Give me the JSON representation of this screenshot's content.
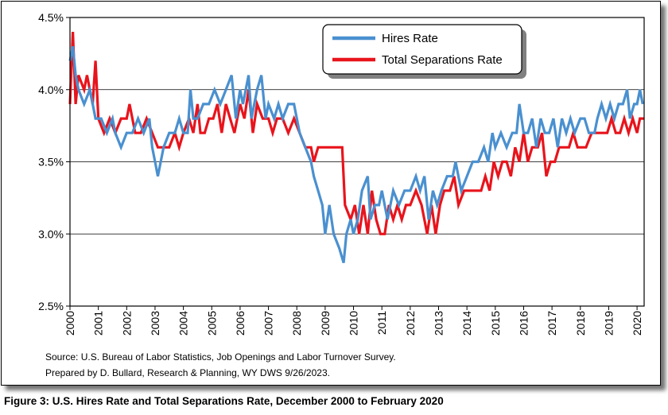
{
  "chart_data": {
    "type": "line",
    "ylim": [
      2.5,
      4.5
    ],
    "y_ticks": [
      "2.5%",
      "3.0%",
      "3.5%",
      "4.0%",
      "4.5%"
    ],
    "y_tick_values": [
      2.5,
      3.0,
      3.5,
      4.0,
      4.5
    ],
    "x_range": [
      2000,
      2020.25
    ],
    "x_ticks": [
      "2000",
      "2001",
      "2002",
      "2003",
      "2004",
      "2005",
      "2006",
      "2007",
      "2008",
      "2009",
      "2010",
      "2011",
      "2012",
      "2013",
      "2014",
      "2015",
      "2016",
      "2017",
      "2018",
      "2019",
      "2020"
    ],
    "x_tick_values": [
      2000,
      2001,
      2002,
      2003,
      2004,
      2005,
      2006,
      2007,
      2008,
      2009,
      2010,
      2011,
      2012,
      2013,
      2014,
      2015,
      2016,
      2017,
      2018,
      2019,
      2020
    ],
    "grid": "horizontal",
    "legend_position": "top-right",
    "series": [
      {
        "name": "Hires Rate",
        "color": "#4a90d0",
        "points": [
          [
            2000.0,
            4.2
          ],
          [
            2000.1,
            4.3
          ],
          [
            2000.2,
            4.1
          ],
          [
            2000.3,
            4.0
          ],
          [
            2000.5,
            3.9
          ],
          [
            2000.7,
            4.0
          ],
          [
            2000.9,
            3.8
          ],
          [
            2001.1,
            3.8
          ],
          [
            2001.3,
            3.7
          ],
          [
            2001.5,
            3.8
          ],
          [
            2001.6,
            3.7
          ],
          [
            2001.8,
            3.6
          ],
          [
            2002.0,
            3.7
          ],
          [
            2002.2,
            3.7
          ],
          [
            2002.4,
            3.8
          ],
          [
            2002.6,
            3.7
          ],
          [
            2002.8,
            3.8
          ],
          [
            2002.9,
            3.6
          ],
          [
            2003.0,
            3.5
          ],
          [
            2003.1,
            3.4
          ],
          [
            2003.3,
            3.6
          ],
          [
            2003.5,
            3.7
          ],
          [
            2003.7,
            3.7
          ],
          [
            2003.85,
            3.8
          ],
          [
            2004.0,
            3.7
          ],
          [
            2004.15,
            3.7
          ],
          [
            2004.25,
            4.0
          ],
          [
            2004.35,
            3.8
          ],
          [
            2004.5,
            3.8
          ],
          [
            2004.7,
            3.9
          ],
          [
            2004.9,
            3.9
          ],
          [
            2005.1,
            4.0
          ],
          [
            2005.3,
            3.9
          ],
          [
            2005.5,
            4.0
          ],
          [
            2005.7,
            4.1
          ],
          [
            2005.85,
            3.8
          ],
          [
            2006.0,
            4.0
          ],
          [
            2006.1,
            3.9
          ],
          [
            2006.3,
            4.1
          ],
          [
            2006.4,
            3.8
          ],
          [
            2006.6,
            4.0
          ],
          [
            2006.75,
            4.1
          ],
          [
            2006.9,
            3.8
          ],
          [
            2007.0,
            3.9
          ],
          [
            2007.2,
            3.8
          ],
          [
            2007.35,
            3.9
          ],
          [
            2007.5,
            3.8
          ],
          [
            2007.7,
            3.9
          ],
          [
            2007.9,
            3.9
          ],
          [
            2008.1,
            3.7
          ],
          [
            2008.3,
            3.6
          ],
          [
            2008.5,
            3.5
          ],
          [
            2008.6,
            3.4
          ],
          [
            2008.75,
            3.3
          ],
          [
            2008.9,
            3.2
          ],
          [
            2009.0,
            3.0
          ],
          [
            2009.15,
            3.2
          ],
          [
            2009.3,
            3.0
          ],
          [
            2009.5,
            2.9
          ],
          [
            2009.65,
            2.8
          ],
          [
            2009.75,
            3.0
          ],
          [
            2009.9,
            3.1
          ],
          [
            2010.0,
            3.0
          ],
          [
            2010.15,
            3.1
          ],
          [
            2010.3,
            3.3
          ],
          [
            2010.5,
            3.4
          ],
          [
            2010.6,
            3.1
          ],
          [
            2010.75,
            3.2
          ],
          [
            2010.9,
            3.2
          ],
          [
            2011.0,
            3.3
          ],
          [
            2011.2,
            3.1
          ],
          [
            2011.4,
            3.3
          ],
          [
            2011.6,
            3.2
          ],
          [
            2011.8,
            3.3
          ],
          [
            2012.0,
            3.3
          ],
          [
            2012.2,
            3.4
          ],
          [
            2012.35,
            3.3
          ],
          [
            2012.5,
            3.4
          ],
          [
            2012.65,
            3.1
          ],
          [
            2012.8,
            3.3
          ],
          [
            2012.95,
            3.2
          ],
          [
            2013.1,
            3.3
          ],
          [
            2013.3,
            3.4
          ],
          [
            2013.5,
            3.4
          ],
          [
            2013.6,
            3.5
          ],
          [
            2013.8,
            3.3
          ],
          [
            2014.0,
            3.4
          ],
          [
            2014.2,
            3.5
          ],
          [
            2014.4,
            3.5
          ],
          [
            2014.6,
            3.6
          ],
          [
            2014.75,
            3.5
          ],
          [
            2014.9,
            3.7
          ],
          [
            2015.0,
            3.6
          ],
          [
            2015.2,
            3.7
          ],
          [
            2015.4,
            3.6
          ],
          [
            2015.6,
            3.7
          ],
          [
            2015.75,
            3.7
          ],
          [
            2015.85,
            3.9
          ],
          [
            2016.0,
            3.7
          ],
          [
            2016.15,
            3.7
          ],
          [
            2016.3,
            3.8
          ],
          [
            2016.45,
            3.6
          ],
          [
            2016.6,
            3.8
          ],
          [
            2016.75,
            3.7
          ],
          [
            2016.9,
            3.7
          ],
          [
            2017.05,
            3.8
          ],
          [
            2017.2,
            3.6
          ],
          [
            2017.35,
            3.8
          ],
          [
            2017.5,
            3.7
          ],
          [
            2017.65,
            3.8
          ],
          [
            2017.8,
            3.7
          ],
          [
            2018.0,
            3.8
          ],
          [
            2018.15,
            3.8
          ],
          [
            2018.3,
            3.7
          ],
          [
            2018.5,
            3.7
          ],
          [
            2018.6,
            3.8
          ],
          [
            2018.75,
            3.9
          ],
          [
            2018.9,
            3.8
          ],
          [
            2019.05,
            3.9
          ],
          [
            2019.2,
            3.8
          ],
          [
            2019.35,
            3.9
          ],
          [
            2019.5,
            3.9
          ],
          [
            2019.65,
            4.0
          ],
          [
            2019.75,
            3.8
          ],
          [
            2019.9,
            3.9
          ],
          [
            2020.0,
            3.9
          ],
          [
            2020.1,
            4.0
          ],
          [
            2020.2,
            3.9
          ]
        ]
      },
      {
        "name": "Total Separations Rate",
        "color": "#e8141c",
        "points": [
          [
            2000.0,
            3.9
          ],
          [
            2000.1,
            4.4
          ],
          [
            2000.2,
            3.9
          ],
          [
            2000.3,
            4.1
          ],
          [
            2000.5,
            4.0
          ],
          [
            2000.6,
            4.1
          ],
          [
            2000.8,
            3.9
          ],
          [
            2000.9,
            4.2
          ],
          [
            2001.0,
            3.8
          ],
          [
            2001.2,
            3.7
          ],
          [
            2001.4,
            3.8
          ],
          [
            2001.6,
            3.7
          ],
          [
            2001.8,
            3.8
          ],
          [
            2002.0,
            3.8
          ],
          [
            2002.1,
            3.9
          ],
          [
            2002.3,
            3.7
          ],
          [
            2002.5,
            3.7
          ],
          [
            2002.7,
            3.8
          ],
          [
            2002.9,
            3.7
          ],
          [
            2003.1,
            3.6
          ],
          [
            2003.3,
            3.6
          ],
          [
            2003.5,
            3.6
          ],
          [
            2003.7,
            3.7
          ],
          [
            2003.85,
            3.6
          ],
          [
            2004.0,
            3.7
          ],
          [
            2004.2,
            3.8
          ],
          [
            2004.35,
            3.7
          ],
          [
            2004.5,
            3.9
          ],
          [
            2004.6,
            3.7
          ],
          [
            2004.75,
            3.7
          ],
          [
            2004.9,
            3.8
          ],
          [
            2005.05,
            3.8
          ],
          [
            2005.2,
            3.9
          ],
          [
            2005.35,
            3.7
          ],
          [
            2005.5,
            3.9
          ],
          [
            2005.65,
            3.8
          ],
          [
            2005.8,
            3.7
          ],
          [
            2006.0,
            3.9
          ],
          [
            2006.15,
            3.8
          ],
          [
            2006.3,
            4.0
          ],
          [
            2006.45,
            3.7
          ],
          [
            2006.6,
            3.9
          ],
          [
            2006.8,
            3.8
          ],
          [
            2007.0,
            3.8
          ],
          [
            2007.15,
            3.7
          ],
          [
            2007.3,
            3.8
          ],
          [
            2007.5,
            3.8
          ],
          [
            2007.7,
            3.7
          ],
          [
            2007.9,
            3.8
          ],
          [
            2008.1,
            3.7
          ],
          [
            2008.3,
            3.6
          ],
          [
            2008.5,
            3.6
          ],
          [
            2008.6,
            3.5
          ],
          [
            2008.75,
            3.6
          ],
          [
            2008.9,
            3.6
          ],
          [
            2009.0,
            3.6
          ],
          [
            2009.2,
            3.6
          ],
          [
            2009.4,
            3.6
          ],
          [
            2009.6,
            3.6
          ],
          [
            2009.7,
            3.2
          ],
          [
            2009.9,
            3.1
          ],
          [
            2010.05,
            3.2
          ],
          [
            2010.2,
            3.0
          ],
          [
            2010.35,
            3.2
          ],
          [
            2010.5,
            3.0
          ],
          [
            2010.65,
            3.3
          ],
          [
            2010.8,
            3.1
          ],
          [
            2010.95,
            3.0
          ],
          [
            2011.1,
            3.0
          ],
          [
            2011.25,
            3.2
          ],
          [
            2011.4,
            3.1
          ],
          [
            2011.55,
            3.2
          ],
          [
            2011.7,
            3.1
          ],
          [
            2011.85,
            3.2
          ],
          [
            2012.0,
            3.2
          ],
          [
            2012.2,
            3.3
          ],
          [
            2012.4,
            3.2
          ],
          [
            2012.6,
            3.0
          ],
          [
            2012.75,
            3.2
          ],
          [
            2012.9,
            3.0
          ],
          [
            2013.05,
            3.2
          ],
          [
            2013.2,
            3.3
          ],
          [
            2013.4,
            3.3
          ],
          [
            2013.55,
            3.4
          ],
          [
            2013.7,
            3.2
          ],
          [
            2013.9,
            3.3
          ],
          [
            2014.1,
            3.3
          ],
          [
            2014.3,
            3.3
          ],
          [
            2014.5,
            3.3
          ],
          [
            2014.65,
            3.4
          ],
          [
            2014.8,
            3.3
          ],
          [
            2014.95,
            3.5
          ],
          [
            2015.1,
            3.4
          ],
          [
            2015.25,
            3.5
          ],
          [
            2015.4,
            3.5
          ],
          [
            2015.55,
            3.4
          ],
          [
            2015.7,
            3.6
          ],
          [
            2015.85,
            3.5
          ],
          [
            2016.0,
            3.7
          ],
          [
            2016.15,
            3.5
          ],
          [
            2016.3,
            3.6
          ],
          [
            2016.5,
            3.6
          ],
          [
            2016.65,
            3.7
          ],
          [
            2016.8,
            3.4
          ],
          [
            2016.95,
            3.5
          ],
          [
            2017.1,
            3.5
          ],
          [
            2017.25,
            3.6
          ],
          [
            2017.4,
            3.6
          ],
          [
            2017.6,
            3.6
          ],
          [
            2017.75,
            3.7
          ],
          [
            2017.9,
            3.6
          ],
          [
            2018.05,
            3.6
          ],
          [
            2018.2,
            3.6
          ],
          [
            2018.4,
            3.7
          ],
          [
            2018.6,
            3.7
          ],
          [
            2018.8,
            3.7
          ],
          [
            2018.95,
            3.7
          ],
          [
            2019.1,
            3.8
          ],
          [
            2019.25,
            3.7
          ],
          [
            2019.4,
            3.7
          ],
          [
            2019.55,
            3.8
          ],
          [
            2019.7,
            3.7
          ],
          [
            2019.85,
            3.8
          ],
          [
            2020.0,
            3.7
          ],
          [
            2020.1,
            3.8
          ],
          [
            2020.25,
            3.8
          ]
        ]
      }
    ],
    "source_lines": [
      "Source: U.S. Bureau of Labor Statistics, Job Openings and Labor Turnover Survey.",
      "Prepared by D. Bullard, Research & Planning, WY DWS 9/26/2023."
    ]
  },
  "caption": "Figure 3: U.S. Hires Rate and Total Separations Rate, December 2000 to February 2020"
}
